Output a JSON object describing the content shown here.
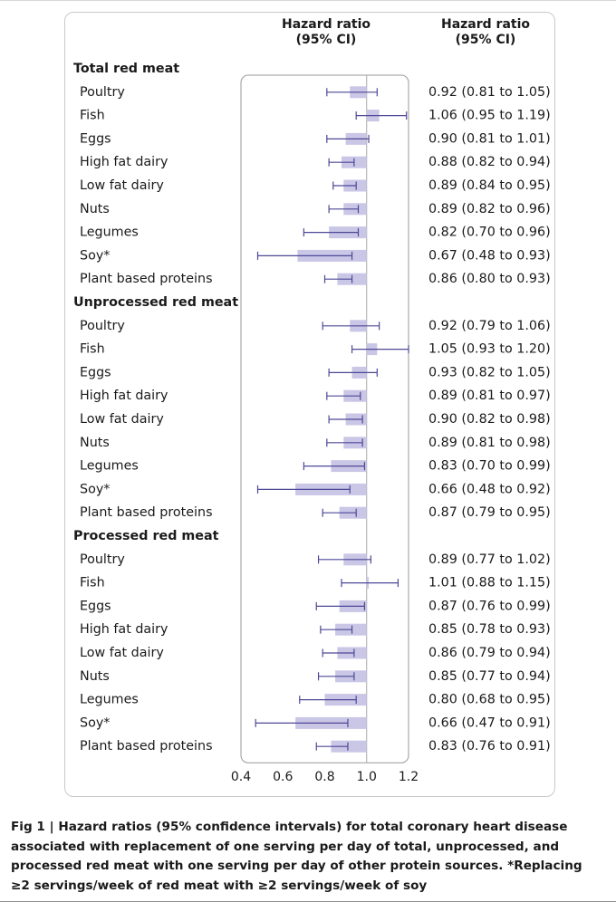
{
  "header": {
    "plot_col_line1": "Hazard ratio",
    "plot_col_line2": "(95% CI)",
    "value_col_line1": "Hazard ratio",
    "value_col_line2": "(95% CI)"
  },
  "caption": {
    "fig_label": "Fig 1 | ",
    "text": "Hazard ratios (95% confidence intervals) for total coronary heart disease associated with replacement of one serving per day of total, unprocessed, and processed red meat with one serving per day of other protein sources. *Replacing ≥2 servings/week of red meat with ≥2 servings/week of soy"
  },
  "colors": {
    "ci_line": "#4e4896",
    "box_fill": "#c9c6e6",
    "reference_line": "#a9a9a9",
    "panel_border": "#c9c9c9"
  },
  "chart_data": {
    "type": "forest",
    "xaxis": {
      "range": [
        0.4,
        1.2
      ],
      "ticks": [
        0.4,
        0.6,
        0.8,
        1.0,
        1.2
      ],
      "tick_labels": [
        "0.4",
        "0.6",
        "0.8",
        "1.0",
        "1.2"
      ],
      "reference": 1.0
    },
    "groups": [
      {
        "name": "Total red meat",
        "rows": [
          {
            "label": "Poultry",
            "hr": 0.92,
            "lo": 0.81,
            "hi": 1.05,
            "text": "0.92 (0.81 to 1.05)"
          },
          {
            "label": "Fish",
            "hr": 1.06,
            "lo": 0.95,
            "hi": 1.19,
            "text": "1.06 (0.95 to 1.19)"
          },
          {
            "label": "Eggs",
            "hr": 0.9,
            "lo": 0.81,
            "hi": 1.01,
            "text": "0.90 (0.81 to 1.01)"
          },
          {
            "label": "High fat dairy",
            "hr": 0.88,
            "lo": 0.82,
            "hi": 0.94,
            "text": "0.88 (0.82 to 0.94)"
          },
          {
            "label": "Low fat dairy",
            "hr": 0.89,
            "lo": 0.84,
            "hi": 0.95,
            "text": "0.89 (0.84 to 0.95)"
          },
          {
            "label": "Nuts",
            "hr": 0.89,
            "lo": 0.82,
            "hi": 0.96,
            "text": "0.89 (0.82 to 0.96)"
          },
          {
            "label": "Legumes",
            "hr": 0.82,
            "lo": 0.7,
            "hi": 0.96,
            "text": "0.82 (0.70 to 0.96)"
          },
          {
            "label": "Soy*",
            "hr": 0.67,
            "lo": 0.48,
            "hi": 0.93,
            "text": "0.67 (0.48 to 0.93)"
          },
          {
            "label": "Plant based proteins",
            "hr": 0.86,
            "lo": 0.8,
            "hi": 0.93,
            "text": "0.86 (0.80 to 0.93)"
          }
        ]
      },
      {
        "name": "Unprocessed red meat",
        "rows": [
          {
            "label": "Poultry",
            "hr": 0.92,
            "lo": 0.79,
            "hi": 1.06,
            "text": "0.92 (0.79 to 1.06)"
          },
          {
            "label": "Fish",
            "hr": 1.05,
            "lo": 0.93,
            "hi": 1.2,
            "text": "1.05 (0.93 to 1.20)"
          },
          {
            "label": "Eggs",
            "hr": 0.93,
            "lo": 0.82,
            "hi": 1.05,
            "text": "0.93 (0.82 to 1.05)"
          },
          {
            "label": "High fat dairy",
            "hr": 0.89,
            "lo": 0.81,
            "hi": 0.97,
            "text": "0.89 (0.81 to 0.97)"
          },
          {
            "label": "Low fat dairy",
            "hr": 0.9,
            "lo": 0.82,
            "hi": 0.98,
            "text": "0.90 (0.82 to 0.98)"
          },
          {
            "label": "Nuts",
            "hr": 0.89,
            "lo": 0.81,
            "hi": 0.98,
            "text": "0.89 (0.81 to 0.98)"
          },
          {
            "label": "Legumes",
            "hr": 0.83,
            "lo": 0.7,
            "hi": 0.99,
            "text": "0.83 (0.70 to 0.99)"
          },
          {
            "label": "Soy*",
            "hr": 0.66,
            "lo": 0.48,
            "hi": 0.92,
            "text": "0.66 (0.48 to 0.92)"
          },
          {
            "label": "Plant based proteins",
            "hr": 0.87,
            "lo": 0.79,
            "hi": 0.95,
            "text": "0.87 (0.79 to 0.95)"
          }
        ]
      },
      {
        "name": "Processed red meat",
        "rows": [
          {
            "label": "Poultry",
            "hr": 0.89,
            "lo": 0.77,
            "hi": 1.02,
            "text": "0.89 (0.77 to 1.02)"
          },
          {
            "label": "Fish",
            "hr": 1.01,
            "lo": 0.88,
            "hi": 1.15,
            "text": "1.01 (0.88 to 1.15)"
          },
          {
            "label": "Eggs",
            "hr": 0.87,
            "lo": 0.76,
            "hi": 0.99,
            "text": "0.87 (0.76 to 0.99)"
          },
          {
            "label": "High fat dairy",
            "hr": 0.85,
            "lo": 0.78,
            "hi": 0.93,
            "text": "0.85 (0.78 to 0.93)"
          },
          {
            "label": "Low fat dairy",
            "hr": 0.86,
            "lo": 0.79,
            "hi": 0.94,
            "text": "0.86 (0.79 to 0.94)"
          },
          {
            "label": "Nuts",
            "hr": 0.85,
            "lo": 0.77,
            "hi": 0.94,
            "text": "0.85 (0.77 to 0.94)"
          },
          {
            "label": "Legumes",
            "hr": 0.8,
            "lo": 0.68,
            "hi": 0.95,
            "text": "0.80 (0.68 to 0.95)"
          },
          {
            "label": "Soy*",
            "hr": 0.66,
            "lo": 0.47,
            "hi": 0.91,
            "text": "0.66 (0.47 to 0.91)"
          },
          {
            "label": "Plant based proteins",
            "hr": 0.83,
            "lo": 0.76,
            "hi": 0.91,
            "text": "0.83 (0.76 to 0.91)"
          }
        ]
      }
    ]
  }
}
